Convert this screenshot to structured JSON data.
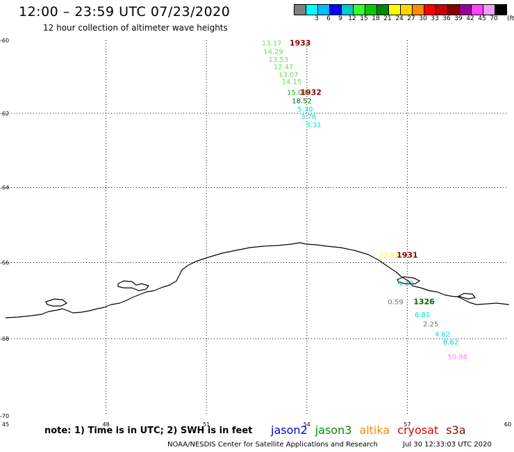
{
  "header": {
    "title": "12:00 – 23:59 UTC 07/23/2020",
    "subtitle": "12 hour collection of altimeter wave heights"
  },
  "colorbar": {
    "unit": "(ft)",
    "bins": [
      {
        "label": "",
        "color": "#7f7f7f"
      },
      {
        "label": "3",
        "color": "#00ffff"
      },
      {
        "label": "6",
        "color": "#00bfff"
      },
      {
        "label": "9",
        "color": "#0000ff"
      },
      {
        "label": "12",
        "color": "#00c8c8"
      },
      {
        "label": "15",
        "color": "#33ff33"
      },
      {
        "label": "18",
        "color": "#00cc00"
      },
      {
        "label": "21",
        "color": "#008800"
      },
      {
        "label": "24",
        "color": "#ffff00"
      },
      {
        "label": "27",
        "color": "#ffd700"
      },
      {
        "label": "30",
        "color": "#ff8c00"
      },
      {
        "label": "33",
        "color": "#ff0000"
      },
      {
        "label": "36",
        "color": "#cc0000"
      },
      {
        "label": "39",
        "color": "#880000"
      },
      {
        "label": "42",
        "color": "#990099"
      },
      {
        "label": "45",
        "color": "#ff44ff"
      },
      {
        "label": "70",
        "color": "#f0a0f0"
      },
      {
        "label": "",
        "color": "#000000"
      }
    ]
  },
  "axes": {
    "lon_ticks": [
      "45",
      "48",
      "51",
      "54",
      "57",
      "60"
    ],
    "lat_ticks": [
      "-60",
      "-62",
      "-64",
      "-66",
      "-68",
      "-70"
    ]
  },
  "observations": [
    {
      "text": "13.17",
      "lon": 52.95,
      "lat": -60.07,
      "color": "#66dd55"
    },
    {
      "text": "14.29",
      "lon": 53.0,
      "lat": -60.3,
      "color": "#66dd55"
    },
    {
      "text": "13.53",
      "lon": 53.15,
      "lat": -60.52,
      "color": "#66dd55"
    },
    {
      "text": "12.47",
      "lon": 53.3,
      "lat": -60.72,
      "color": "#66dd55"
    },
    {
      "text": "13.07",
      "lon": 53.45,
      "lat": -60.93,
      "color": "#66dd55"
    },
    {
      "text": "14.15",
      "lon": 53.55,
      "lat": -61.13,
      "color": "#66dd55"
    },
    {
      "text": "15.09",
      "lon": 53.7,
      "lat": -61.42,
      "color": "#22aa22"
    },
    {
      "text": "18.52",
      "lon": 53.85,
      "lat": -61.65,
      "color": "#006600"
    },
    {
      "text": "5.30",
      "lon": 53.95,
      "lat": -61.88,
      "color": "#00dddd"
    },
    {
      "text": "3.76",
      "lon": 54.05,
      "lat": -62.08,
      "color": "#00dddd"
    },
    {
      "text": "3.31",
      "lon": 54.2,
      "lat": -62.3,
      "color": "#00dddd"
    },
    {
      "text": "23.91",
      "lon": 56.45,
      "lat": -65.8,
      "color": "#ffff00"
    },
    {
      "text": "4.37",
      "lon": 56.95,
      "lat": -66.54,
      "color": "#00dddd"
    },
    {
      "text": "0.59",
      "lon": 56.65,
      "lat": -67.03,
      "color": "#707070"
    },
    {
      "text": "6.81",
      "lon": 57.45,
      "lat": -67.36,
      "color": "#00dddd"
    },
    {
      "text": "2.25",
      "lon": 57.7,
      "lat": -67.61,
      "color": "#707070"
    },
    {
      "text": "4.62",
      "lon": 58.05,
      "lat": -67.87,
      "color": "#00dddd"
    },
    {
      "text": "8.62",
      "lon": 58.3,
      "lat": -68.08,
      "color": "#00c8c8"
    },
    {
      "text": "50.98",
      "lon": 58.5,
      "lat": -68.46,
      "color": "#ee88ee"
    }
  ],
  "pass_times": [
    {
      "text": "1933",
      "lon": 53.8,
      "lat": -60.07,
      "color": "#880000"
    },
    {
      "text": "1932",
      "lon": 54.12,
      "lat": -61.42,
      "color": "#880000"
    },
    {
      "text": "1931",
      "lon": 57.0,
      "lat": -65.8,
      "color": "#880000"
    },
    {
      "text": "1326",
      "lon": 57.5,
      "lat": -67.03,
      "color": "#006600"
    }
  ],
  "note": "note: 1) Time is in UTC; 2) SWH is in feet",
  "legend": [
    {
      "label": "jason2",
      "color": "#0000cc"
    },
    {
      "label": "jason3",
      "color": "#008800"
    },
    {
      "label": "altika",
      "color": "#ff8800"
    },
    {
      "label": "cryosat",
      "color": "#dd0000"
    },
    {
      "label": "s3a",
      "color": "#880000"
    }
  ],
  "footer": {
    "agency": "NOAA/NESDIS Center for Satellite Applications and Research",
    "date": "Jul 30 12:33:03 UTC 2020"
  }
}
